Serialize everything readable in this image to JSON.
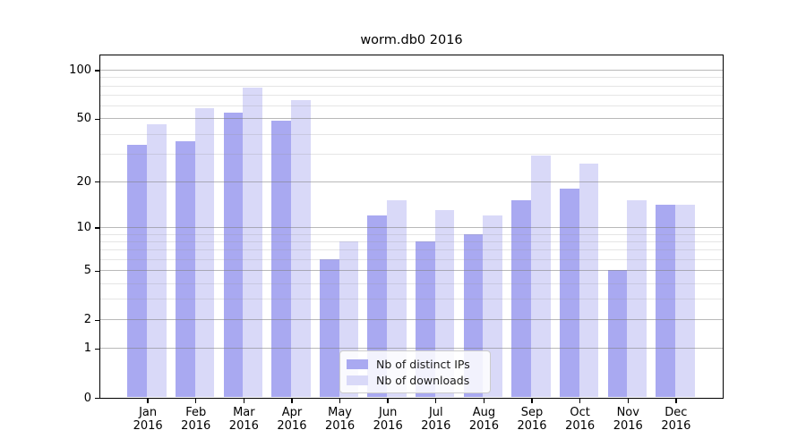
{
  "chart_data": {
    "type": "bar",
    "title": "worm.db0 2016",
    "x_categories": [
      {
        "month": "Jan",
        "year": "2016"
      },
      {
        "month": "Feb",
        "year": "2016"
      },
      {
        "month": "Mar",
        "year": "2016"
      },
      {
        "month": "Apr",
        "year": "2016"
      },
      {
        "month": "May",
        "year": "2016"
      },
      {
        "month": "Jun",
        "year": "2016"
      },
      {
        "month": "Jul",
        "year": "2016"
      },
      {
        "month": "Aug",
        "year": "2016"
      },
      {
        "month": "Sep",
        "year": "2016"
      },
      {
        "month": "Oct",
        "year": "2016"
      },
      {
        "month": "Nov",
        "year": "2016"
      },
      {
        "month": "Dec",
        "year": "2016"
      }
    ],
    "series": [
      {
        "name": "Nb of distinct IPs",
        "color": "#a9a9f1",
        "values": [
          34,
          36,
          54,
          48,
          6,
          12,
          8,
          9,
          15,
          18,
          5,
          14
        ]
      },
      {
        "name": "Nb of downloads",
        "color": "#d9d9f8",
        "values": [
          46,
          58,
          78,
          65,
          8,
          15,
          13,
          12,
          29,
          26,
          15,
          14
        ]
      }
    ],
    "y_scale": "log1p",
    "ylim": [
      0,
      125
    ],
    "y_major_ticks": [
      0,
      1,
      2,
      5,
      10,
      20,
      50,
      100
    ],
    "y_minor_gridlines": [
      3,
      4,
      6,
      7,
      8,
      9,
      30,
      40,
      60,
      70,
      80,
      90
    ],
    "grid": "on",
    "legend_position": "lower center",
    "colors": {
      "major_grid": "#b0b0b0",
      "minor_grid": "#e3e3e3",
      "axis": "#000000",
      "background": "#ffffff"
    }
  }
}
